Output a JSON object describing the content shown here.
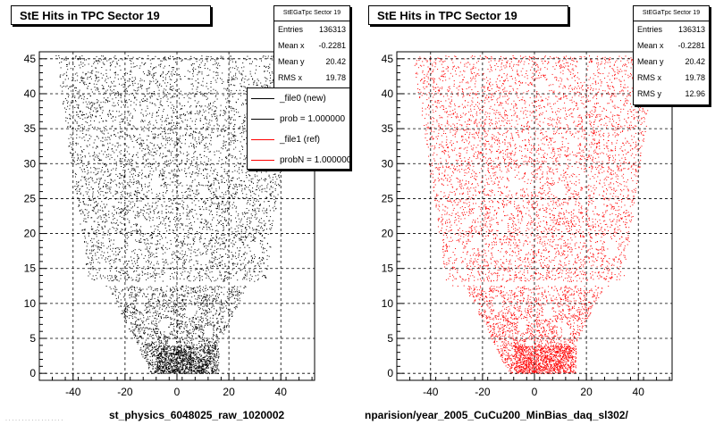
{
  "chart_data": [
    {
      "type": "scatter",
      "title": "StE Hits in TPC Sector 19",
      "xlim": [
        -53,
        53
      ],
      "ylim": [
        -1,
        46
      ],
      "xticks": [
        "-40",
        "-20",
        "0",
        "20",
        "40"
      ],
      "yticks": [
        "0",
        "5",
        "10",
        "15",
        "20",
        "25",
        "30",
        "35",
        "40",
        "45"
      ],
      "grid": true,
      "marker_color": "#000000",
      "stats_box": {
        "name": "StEGaTpc Sector 19",
        "entries_label": "Entries",
        "entries": "136313",
        "mean_x_label": "Mean x",
        "mean_x": "-0.2281",
        "mean_y_label": "Mean y",
        "mean_y": "20.42",
        "rms_x_label": "RMS x",
        "rms_x": "19.78"
      },
      "legend": {
        "placement": "top-right",
        "entries": [
          {
            "label": "_file0 (new)",
            "color": "#000000"
          },
          {
            "label": "prob = 1.000000",
            "color": "#000000"
          },
          {
            "label": "_file1 (ref)",
            "color": "#ff0000"
          },
          {
            "label": "probN = 1.000000",
            "color": "#ff0000"
          }
        ]
      },
      "footer": "st_physics_6048025_raw_1020002"
    },
    {
      "type": "scatter",
      "title": "StE Hits in TPC Sector 19",
      "xlim": [
        -53,
        53
      ],
      "ylim": [
        -1,
        46
      ],
      "xticks": [
        "-40",
        "-20",
        "0",
        "20",
        "40"
      ],
      "yticks": [
        "0",
        "5",
        "10",
        "15",
        "20",
        "25",
        "30",
        "35",
        "40",
        "45"
      ],
      "grid": true,
      "marker_color": "#ff0000",
      "stats_box": {
        "name": "StEGaTpc Sector 19",
        "entries_label": "Entries",
        "entries": "136313",
        "mean_x_label": "Mean x",
        "mean_x": "-0.2281",
        "mean_y_label": "Mean y",
        "mean_y": "20.42",
        "rms_x_label": "RMS x",
        "rms_x": "19.78",
        "rms_y_label": "RMS y",
        "rms_y": "12.96"
      },
      "footer": "nparision/year_2005_CuCu200_MinBias_daq_sl302/"
    }
  ]
}
